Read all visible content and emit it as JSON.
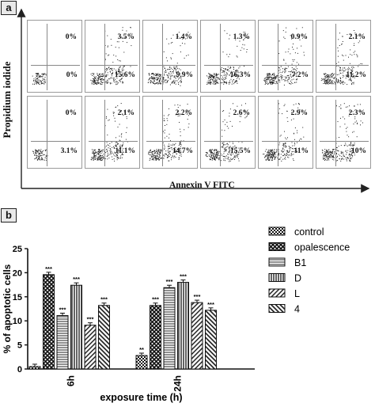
{
  "panel_a": {
    "label": "a",
    "y_axis_label": "Propidium iodide",
    "x_axis_label": "Annexin V FITC",
    "rows": [
      [
        {
          "upper_right": "0%",
          "lower_right": "0%"
        },
        {
          "upper_right": "3.5%",
          "lower_right": "15.6%"
        },
        {
          "upper_right": "1.4%",
          "lower_right": "9.9%"
        },
        {
          "upper_right": "1.3%",
          "lower_right": "16.3%"
        },
        {
          "upper_right": "0.9%",
          "lower_right": "7.2%"
        },
        {
          "upper_right": "2.1%",
          "lower_right": "11.2%"
        }
      ],
      [
        {
          "upper_right": "0%",
          "lower_right": "3.1%"
        },
        {
          "upper_right": "2.1%",
          "lower_right": "11.1%"
        },
        {
          "upper_right": "2.2%",
          "lower_right": "14.7%"
        },
        {
          "upper_right": "2.6%",
          "lower_right": "15.5%"
        },
        {
          "upper_right": "2.9%",
          "lower_right": "11%"
        },
        {
          "upper_right": "2.3%",
          "lower_right": "10%"
        }
      ]
    ]
  },
  "panel_b": {
    "label": "b"
  },
  "chart_data": {
    "type": "bar",
    "title": "",
    "xlabel": "exposure time (h)",
    "ylabel": "% of apoptotic cells",
    "categories": [
      "6h",
      "24h"
    ],
    "ylim": [
      0,
      25
    ],
    "yticks": [
      0,
      5,
      10,
      15,
      20,
      25
    ],
    "legend_position": "right",
    "series": [
      {
        "name": "control",
        "values": [
          0.5,
          2.8
        ],
        "labels": [
          "",
          "**"
        ],
        "pattern": "checker"
      },
      {
        "name": "opalescence",
        "values": [
          19.6,
          13.2
        ],
        "labels": [
          "***",
          "***"
        ],
        "pattern": "diamond"
      },
      {
        "name": "B1",
        "values": [
          11.1,
          16.9
        ],
        "labels": [
          "***",
          "***"
        ],
        "pattern": "hlines"
      },
      {
        "name": "D",
        "values": [
          17.4,
          18.0
        ],
        "labels": [
          "***",
          "***"
        ],
        "pattern": "vlines"
      },
      {
        "name": "L",
        "values": [
          9.1,
          13.8
        ],
        "labels": [
          "***",
          "***"
        ],
        "pattern": "diag"
      },
      {
        "name": "4",
        "values": [
          13.2,
          12.2
        ],
        "labels": [
          "***",
          "***"
        ],
        "pattern": "diag2"
      }
    ]
  }
}
